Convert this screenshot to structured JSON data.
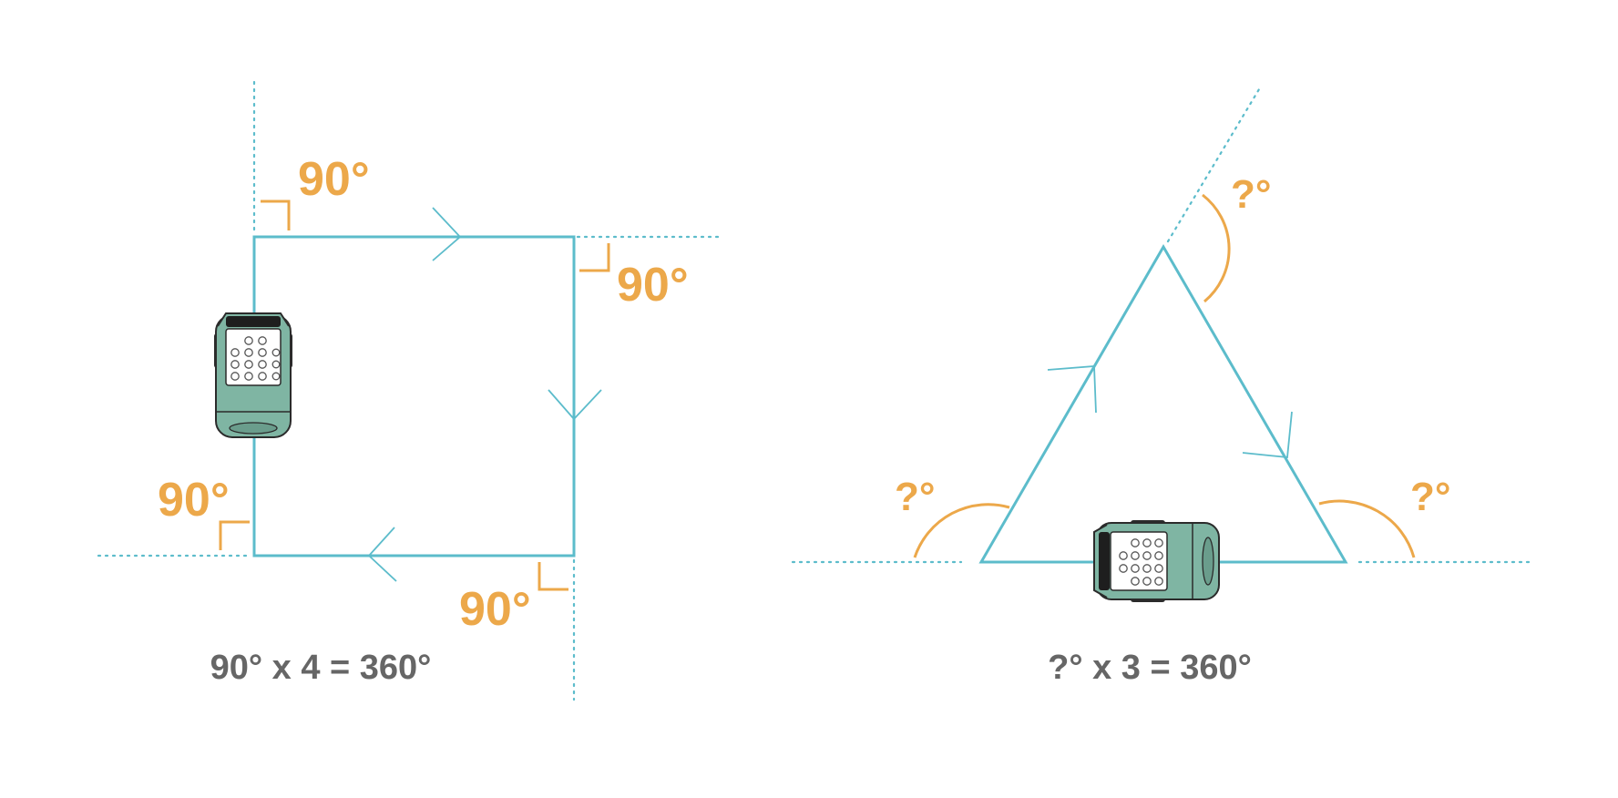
{
  "square": {
    "angle_labels": [
      "90°",
      "90°",
      "90°",
      "90°"
    ],
    "equation": "90° x 4 = 360°"
  },
  "triangle": {
    "angle_labels": [
      "?°",
      "?°",
      "?°"
    ],
    "equation": "?° x 3 = 360°"
  },
  "colors": {
    "path": "#5cbccb",
    "angle": "#eca84a",
    "equation": "#666666",
    "robot_body": "#7fb5a3"
  },
  "icons": [
    "robot-icon"
  ]
}
